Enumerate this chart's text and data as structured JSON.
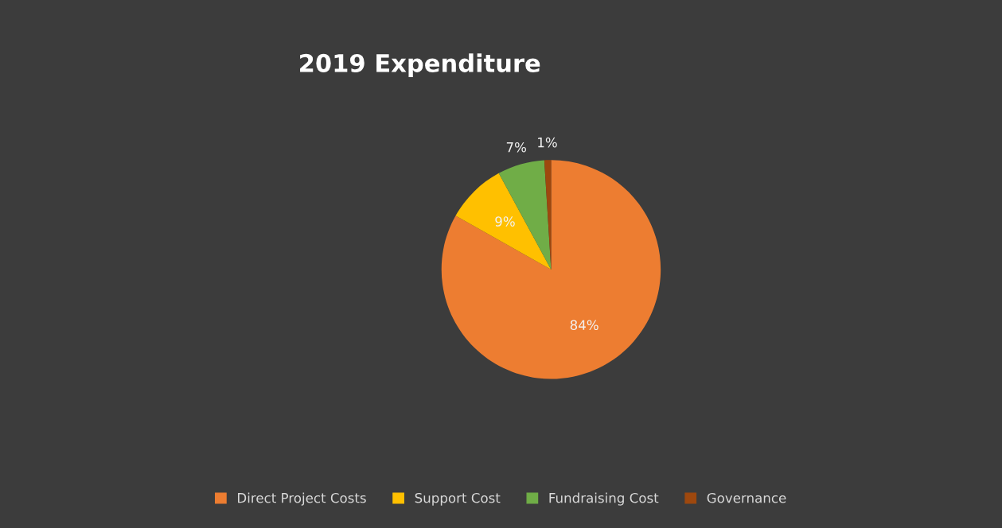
{
  "chart_data": {
    "type": "pie",
    "title": "2019 Expenditure",
    "categories": [
      "Direct Project Costs",
      "Support Cost",
      "Fundraising Cost",
      "Governance"
    ],
    "values": [
      84,
      9,
      7,
      1
    ],
    "colors": [
      "#ed7d31",
      "#ffc000",
      "#70ad47",
      "#9e480e"
    ],
    "value_labels": [
      "84%",
      "9%",
      "7%",
      "1%"
    ],
    "legend": "bottom"
  }
}
